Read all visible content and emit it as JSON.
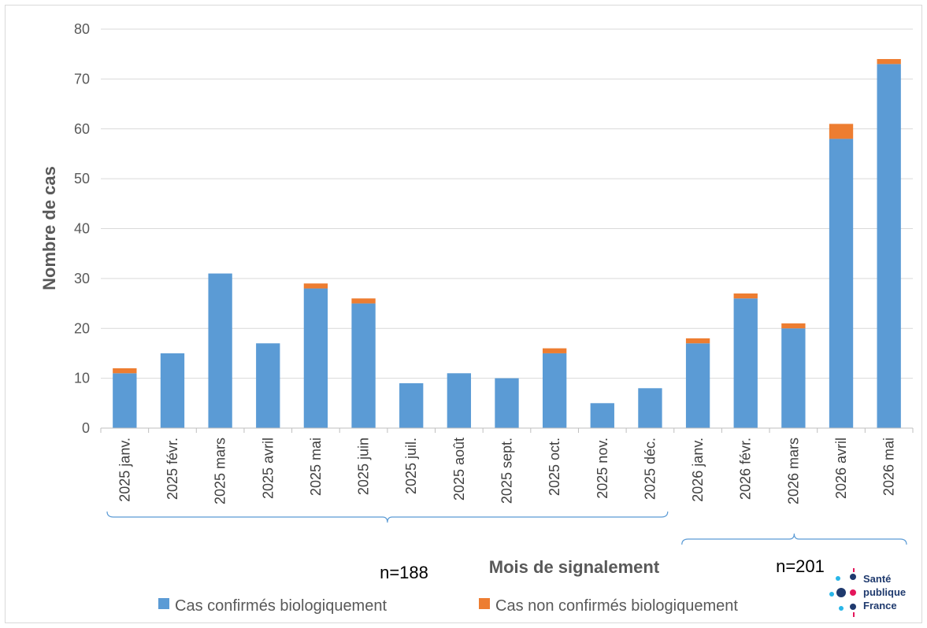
{
  "chart_data": {
    "type": "bar",
    "stacked": true,
    "categories": [
      "2025 janv.",
      "2025 févr.",
      "2025 mars",
      "2025 avril",
      "2025 mai",
      "2025 juin",
      "2025 juil.",
      "2025 août",
      "2025 sept.",
      "2025 oct.",
      "2025 nov.",
      "2025 déc.",
      "2026 janv.",
      "2026 févr.",
      "2026 mars",
      "2026 avril",
      "2026 mai"
    ],
    "series": [
      {
        "name": "Cas confirmés biologiquement",
        "color": "#5b9bd5",
        "values": [
          11,
          15,
          31,
          17,
          28,
          25,
          9,
          11,
          10,
          15,
          5,
          8,
          17,
          26,
          20,
          58,
          73
        ]
      },
      {
        "name": "Cas non confirmés biologiquement",
        "color": "#ed7d31",
        "values": [
          1,
          0,
          0,
          0,
          1,
          1,
          0,
          0,
          0,
          1,
          0,
          0,
          1,
          1,
          1,
          3,
          1
        ]
      }
    ],
    "ylabel": "Nombre de cas",
    "xlabel": "Mois de signalement",
    "ylim": [
      0,
      80
    ],
    "yticks": [
      0,
      10,
      20,
      30,
      40,
      50,
      60,
      70,
      80
    ],
    "grid": true,
    "legend": "bottom",
    "annotations": [
      {
        "text": "n=188",
        "group": "2025 janv. – 2025 déc."
      },
      {
        "text": "n=201",
        "group": "2026 janv. – 2026 mai"
      }
    ]
  },
  "logo": {
    "line1": "Santé",
    "line2": "publique",
    "line3": "France"
  }
}
